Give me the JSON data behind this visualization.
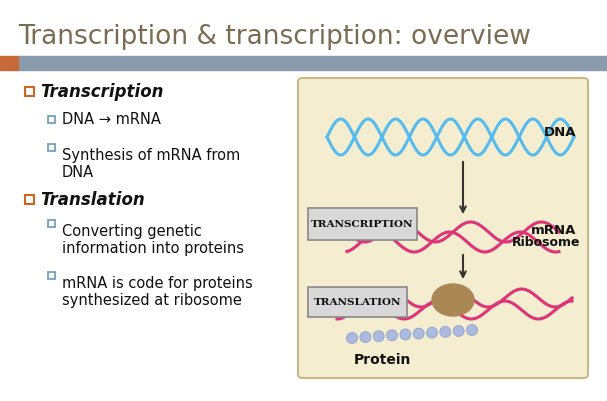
{
  "title": "Transcription & transcription: overview",
  "title_color": "#7B6B52",
  "title_fontsize": 19,
  "bg_color": "#FFFFFF",
  "header_bar_color": "#8A9BAD",
  "header_accent_color": "#C8693A",
  "bullet1_title": "Transcription",
  "bullet_color": "#CC6622",
  "sub1a": "DNA → mRNA",
  "sub1b": "Synthesis of mRNA from\nDNA",
  "bullet2_title": "Translation",
  "sub2a": "Converting genetic\ninformation into proteins",
  "sub2b": "mRNA is code for proteins\nsynthesized at ribosome",
  "sub_bullet_color": "#6699BB",
  "text_color": "#111111",
  "diagram_bg": "#F5EDD0",
  "diagram_border": "#C8B888",
  "dna_color": "#55BBEE",
  "mrna_color": "#DD3377",
  "ribosome_color": "#AA8855",
  "protein_color": "#AABBDD",
  "arrow_color": "#333333",
  "label_box_color": "#D8D8D8",
  "label_box_edge": "#888888"
}
